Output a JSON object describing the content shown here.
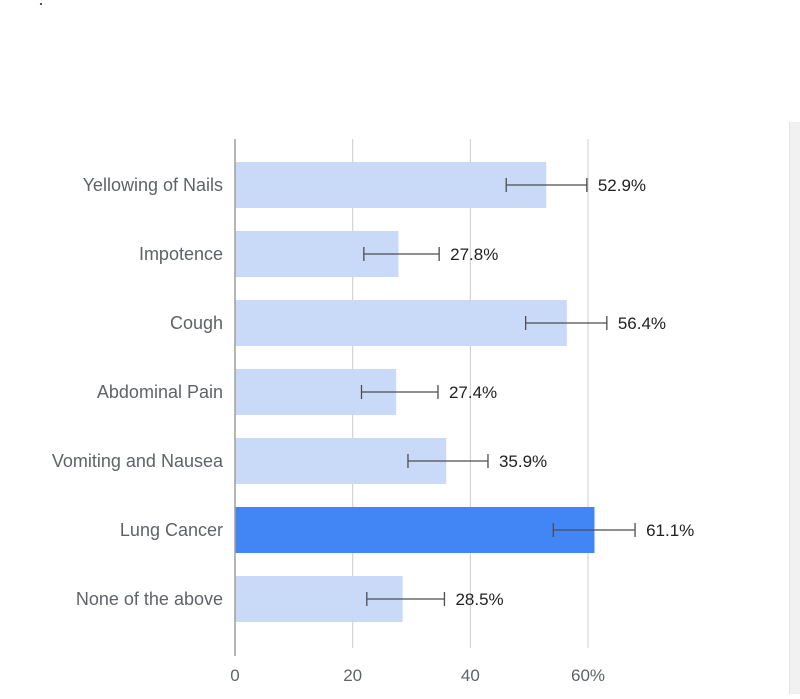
{
  "colors": {
    "bar": "#c9daf8",
    "highlight": "#4285f4",
    "grid": "#cccccc",
    "axis": "#9e9e9e",
    "error_bar": "#4d4d4d",
    "label_text": "#5f6368",
    "value_text": "#212121"
  },
  "chart_data": {
    "type": "bar",
    "orientation": "horizontal",
    "title": "",
    "xlabel": "",
    "ylabel": "",
    "xlim": [
      0,
      60
    ],
    "x_ticks": [
      "0",
      "20",
      "40",
      "60%"
    ],
    "grid": true,
    "legend": "none",
    "categories": [
      "Yellowing of Nails",
      "Impotence",
      "Cough",
      "Abdominal Pain",
      "Vomiting and Nausea",
      "Lung Cancer",
      "None of the above"
    ],
    "values": [
      52.9,
      27.8,
      56.4,
      27.4,
      35.9,
      61.1,
      28.5
    ],
    "value_labels": [
      "52.9%",
      "27.8%",
      "56.4%",
      "27.4%",
      "35.9%",
      "61.1%",
      "28.5%"
    ],
    "error_low": [
      46.1,
      21.9,
      49.4,
      21.5,
      29.4,
      54.1,
      22.4
    ],
    "error_high": [
      59.8,
      34.7,
      63.2,
      34.5,
      43.0,
      68.0,
      35.6
    ],
    "highlight_index": 5
  }
}
